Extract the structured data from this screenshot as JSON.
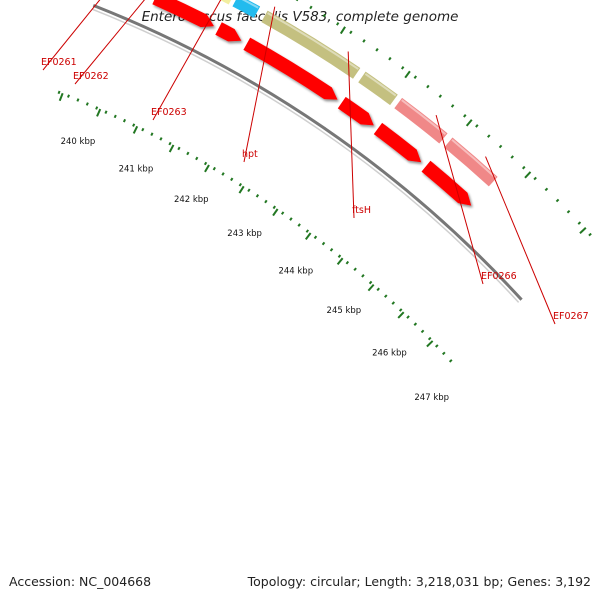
{
  "header": {
    "title": "Enterococcus faecalis V583, complete genome"
  },
  "footer": {
    "accession": "Accession: NC_004668",
    "topology": "Topology: circular; Length: 3,218,031 bp; Genes: 3,192"
  },
  "colors": {
    "backbone": "#888888",
    "cds": "#ff0000",
    "label": "#cc0000",
    "tick": "#227722",
    "gene_pale_yellow": "#f2eea0",
    "gene_pink": "#f08888",
    "gene_cyan": "#22bbee",
    "gene_olive": "#c4c080"
  },
  "ruler_labels": [
    "240 kbp",
    "241 kbp",
    "242 kbp",
    "243 kbp",
    "244 kbp",
    "245 kbp",
    "246 kbp",
    "247 kbp"
  ],
  "genes": [
    {
      "name": "EF0261",
      "color": "gene_pale_yellow"
    },
    {
      "name": "EF0262",
      "color": "gene_pink"
    },
    {
      "name": "EF0263",
      "color": "gene_pale_yellow"
    },
    {
      "name": "hpt",
      "color": "gene_cyan"
    },
    {
      "name": "ftsH",
      "color": "gene_olive"
    },
    {
      "name": "EF0266",
      "color": "gene_olive"
    },
    {
      "name": "EF0267",
      "color": "gene_pink"
    },
    {
      "name": "",
      "color": "gene_pink"
    }
  ]
}
